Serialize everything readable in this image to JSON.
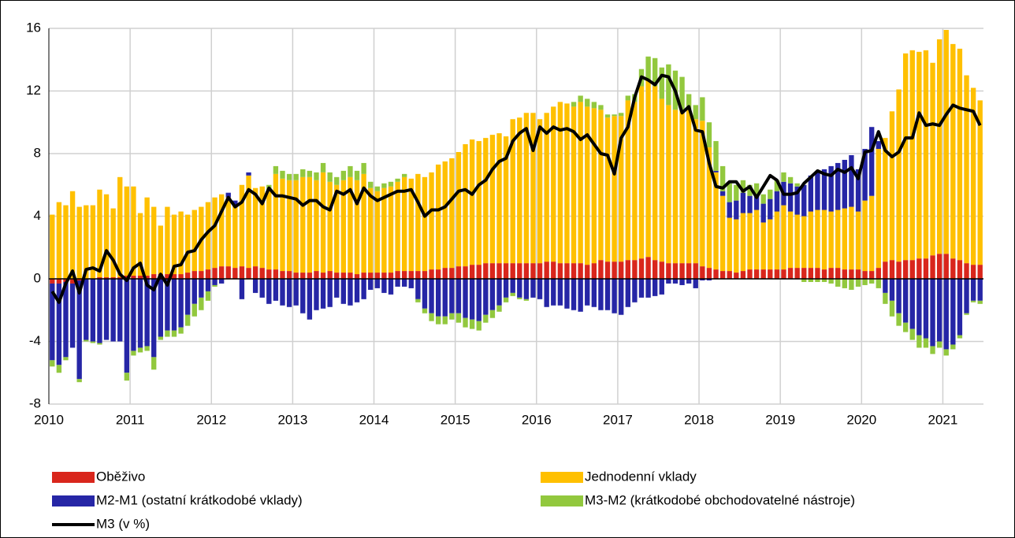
{
  "chart_data": {
    "type": "bar",
    "stacked": true,
    "categories": [
      "2010",
      null,
      null,
      null,
      null,
      null,
      null,
      null,
      null,
      null,
      null,
      null,
      "2011",
      null,
      null,
      null,
      null,
      null,
      null,
      null,
      null,
      null,
      null,
      null,
      "2012",
      null,
      null,
      null,
      null,
      null,
      null,
      null,
      null,
      null,
      null,
      null,
      "2013",
      null,
      null,
      null,
      null,
      null,
      null,
      null,
      null,
      null,
      null,
      null,
      "2014",
      null,
      null,
      null,
      null,
      null,
      null,
      null,
      null,
      null,
      null,
      null,
      "2015",
      null,
      null,
      null,
      null,
      null,
      null,
      null,
      null,
      null,
      null,
      null,
      "2016",
      null,
      null,
      null,
      null,
      null,
      null,
      null,
      null,
      null,
      null,
      null,
      "2017",
      null,
      null,
      null,
      null,
      null,
      null,
      null,
      null,
      null,
      null,
      null,
      "2018",
      null,
      null,
      null,
      null,
      null,
      null,
      null,
      null,
      null,
      null,
      null,
      "2019",
      null,
      null,
      null,
      null,
      null,
      null,
      null,
      null,
      null,
      null,
      null,
      "2020",
      null,
      null,
      null,
      null,
      null,
      null,
      null,
      null,
      null,
      null,
      null,
      "2021",
      null,
      null,
      null,
      null,
      null
    ],
    "series": [
      {
        "name": "Oběživo",
        "type": "bar",
        "color": "#d9261c",
        "values": [
          -0.3,
          -0.3,
          -0.2,
          -0.3,
          -0.1,
          0,
          0,
          0.1,
          0.1,
          0.1,
          0.1,
          0.2,
          0.2,
          0.2,
          0.2,
          0.3,
          0.3,
          0.3,
          0.3,
          0.3,
          0.4,
          0.5,
          0.5,
          0.6,
          0.7,
          0.8,
          0.8,
          0.7,
          0.8,
          0.7,
          0.8,
          0.7,
          0.6,
          0.6,
          0.5,
          0.5,
          0.4,
          0.4,
          0.4,
          0.5,
          0.4,
          0.5,
          0.4,
          0.4,
          0.4,
          0.3,
          0.4,
          0.4,
          0.4,
          0.4,
          0.4,
          0.5,
          0.5,
          0.5,
          0.5,
          0.5,
          0.6,
          0.6,
          0.7,
          0.7,
          0.8,
          0.8,
          0.9,
          0.9,
          1.0,
          1.0,
          1.0,
          1.0,
          1.0,
          1.0,
          1.0,
          1.0,
          1.0,
          1.1,
          1.1,
          1.0,
          1.0,
          1.0,
          1.0,
          0.9,
          1.0,
          1.2,
          1.1,
          1.1,
          1.1,
          1.2,
          1.2,
          1.3,
          1.4,
          1.2,
          1.1,
          1.0,
          1.0,
          1.0,
          1.0,
          1.0,
          0.8,
          0.7,
          0.6,
          0.5,
          0.5,
          0.4,
          0.5,
          0.6,
          0.6,
          0.6,
          0.6,
          0.6,
          0.6,
          0.7,
          0.7,
          0.7,
          0.7,
          0.7,
          0.6,
          0.7,
          0.7,
          0.6,
          0.6,
          0.6,
          0.5,
          0.5,
          0.7,
          1.1,
          1.2,
          1.1,
          1.2,
          1.2,
          1.3,
          1.3,
          1.5,
          1.6,
          1.6,
          1.3,
          1.2,
          1.0,
          0.9,
          0.9
        ]
      },
      {
        "name": "Jednodenní vklady",
        "type": "bar",
        "color": "#ffc000",
        "values": [
          4.1,
          4.9,
          4.7,
          5.6,
          4.6,
          4.7,
          4.7,
          5.6,
          5.3,
          4.4,
          6.4,
          5.7,
          5.7,
          4.0,
          5.0,
          4.3,
          3.1,
          4.3,
          3.8,
          4.0,
          3.7,
          3.9,
          4.1,
          4.3,
          4.5,
          4.6,
          4.4,
          4.0,
          5.2,
          5.9,
          5.0,
          5.2,
          5.1,
          6.1,
          5.9,
          5.8,
          5.9,
          6.1,
          6.1,
          5.8,
          6.4,
          5.7,
          5.6,
          5.9,
          6.1,
          6.0,
          6.3,
          5.4,
          5.2,
          5.4,
          5.5,
          5.7,
          6.0,
          5.9,
          6.2,
          6.0,
          6.2,
          6.7,
          6.8,
          7.0,
          7.3,
          7.8,
          8.0,
          7.9,
          8.0,
          8.2,
          8.3,
          8.1,
          9.2,
          9.3,
          9.6,
          9.6,
          9.2,
          9.5,
          9.9,
          10.3,
          10.2,
          10.0,
          10.3,
          10.1,
          9.9,
          9.6,
          9.2,
          9.3,
          9.3,
          10.2,
          10.1,
          11.0,
          11.3,
          11.1,
          10.4,
          10.1,
          9.8,
          9.7,
          9.8,
          9.2,
          9.3,
          7.7,
          6.2,
          4.8,
          3.4,
          3.4,
          3.7,
          3.6,
          3.8,
          3.0,
          3.2,
          3.7,
          4.1,
          3.6,
          3.4,
          3.3,
          3.6,
          3.7,
          3.8,
          3.6,
          3.7,
          3.9,
          4.0,
          3.7,
          4.5,
          4.8,
          7.6,
          7.9,
          9.5,
          11.0,
          13.2,
          13.4,
          13.2,
          13.3,
          12.3,
          13.7,
          14.3,
          13.7,
          13.5,
          12.0,
          11.3,
          10.5
        ]
      },
      {
        "name": "M2-M1 (ostatní krátkodobé vklady)",
        "type": "bar",
        "color": "#2626a6",
        "values": [
          -4.9,
          -5.2,
          -4.8,
          -4.1,
          -6.3,
          -3.9,
          -4.0,
          -4.1,
          -3.9,
          -4.0,
          -4.0,
          -6.0,
          -4.6,
          -4.4,
          -4.3,
          -5.0,
          -3.7,
          -3.3,
          -3.3,
          -3.1,
          -2.3,
          -1.6,
          -1.2,
          -0.8,
          -0.4,
          -0.3,
          0.3,
          0.3,
          -1.3,
          0.2,
          -0.9,
          -1.2,
          -1.6,
          -1.4,
          -1.7,
          -1.8,
          -1.7,
          -2.2,
          -2.6,
          -2.0,
          -1.9,
          -1.8,
          -1.2,
          -1.6,
          -1.7,
          -1.5,
          -1.3,
          -0.7,
          -0.6,
          -0.9,
          -1.0,
          -0.5,
          -0.5,
          -0.6,
          -1.3,
          -1.9,
          -2.2,
          -2.4,
          -2.4,
          -2.2,
          -2.2,
          -2.5,
          -2.6,
          -2.7,
          -2.3,
          -2.0,
          -1.7,
          -1.2,
          -0.9,
          -1.2,
          -1.3,
          -1.2,
          -1.3,
          -1.8,
          -1.7,
          -1.7,
          -1.9,
          -2.0,
          -2.1,
          -1.7,
          -1.8,
          -2.0,
          -2.0,
          -2.2,
          -2.3,
          -1.8,
          -1.5,
          -1.2,
          -1.2,
          -1.1,
          -1.0,
          -0.3,
          -0.3,
          -0.4,
          -0.3,
          -0.6,
          -0.1,
          -0.1,
          0.1,
          0.3,
          1.0,
          1.2,
          1.3,
          1.1,
          1.0,
          1.2,
          1.3,
          1.3,
          1.5,
          1.8,
          1.8,
          2.0,
          2.3,
          2.5,
          2.6,
          2.9,
          3.0,
          3.1,
          3.3,
          2.7,
          3.3,
          4.4,
          0.5,
          -0.9,
          -1.4,
          -2.2,
          -2.8,
          -3.2,
          -3.6,
          -3.8,
          -4.3,
          -4.0,
          -4.5,
          -4.2,
          -3.6,
          -2.2,
          -1.4,
          -1.4
        ]
      },
      {
        "name": "M3-M2 (krátkodobé obchodovatelné nástroje)",
        "type": "bar",
        "color": "#92c83e",
        "values": [
          -0.4,
          -0.5,
          -0.2,
          0,
          -0.2,
          -0.1,
          -0.1,
          -0.1,
          0,
          0,
          0,
          -0.5,
          -0.3,
          -0.3,
          -0.3,
          -0.8,
          -0.2,
          -0.4,
          -0.4,
          -0.4,
          -0.7,
          -0.8,
          -0.8,
          -0.6,
          -0.1,
          0,
          0,
          0,
          0,
          0,
          0,
          0,
          0.3,
          0.5,
          0.5,
          0.4,
          0.4,
          0.5,
          0.4,
          0.5,
          0.6,
          0.6,
          0.5,
          0.6,
          0.7,
          0.6,
          0.7,
          0.4,
          0.3,
          0.3,
          0.3,
          0.2,
          0.2,
          0,
          -0.2,
          -0.3,
          -0.5,
          -0.5,
          -0.5,
          -0.4,
          -0.6,
          -0.6,
          -0.6,
          -0.6,
          -0.5,
          -0.5,
          -0.4,
          -0.3,
          -0.2,
          -0.1,
          -0.1,
          0,
          0,
          0,
          0,
          0,
          0,
          0.3,
          0.4,
          0.5,
          0.4,
          0.3,
          0.2,
          0.1,
          0.2,
          0.3,
          0.5,
          1.1,
          1.5,
          1.8,
          2.0,
          2.6,
          2.5,
          2.2,
          1.0,
          0.9,
          1.5,
          1.6,
          1.9,
          1.6,
          1.2,
          1.0,
          0.8,
          0.7,
          0.7,
          0.6,
          0.6,
          0.7,
          0.6,
          0.4,
          0.2,
          -0.2,
          -0.2,
          -0.2,
          -0.2,
          -0.3,
          -0.5,
          -0.6,
          -0.7,
          -0.5,
          -0.4,
          -0.3,
          -0.6,
          -0.7,
          -1.0,
          -0.8,
          -0.6,
          -0.7,
          -0.8,
          -0.6,
          -0.5,
          -0.4,
          -0.4,
          -0.3,
          -0.2,
          -0.1,
          -0.1,
          -0.2
        ]
      },
      {
        "name": "M3 (v %)",
        "type": "line",
        "color": "#000000",
        "values": [
          -0.8,
          -1.5,
          -0.3,
          0.5,
          -0.9,
          0.6,
          0.7,
          0.5,
          1.8,
          1.2,
          0.3,
          -0.1,
          0.7,
          1.0,
          -0.4,
          -0.7,
          0.3,
          -0.4,
          0.8,
          0.9,
          1.7,
          1.8,
          2.5,
          3.0,
          3.4,
          4.3,
          5.2,
          4.6,
          4.9,
          5.7,
          5.4,
          4.8,
          5.8,
          5.3,
          5.3,
          5.2,
          5.1,
          4.7,
          5.0,
          5.0,
          4.6,
          4.4,
          5.6,
          5.4,
          5.7,
          4.8,
          5.8,
          5.3,
          5.0,
          5.2,
          5.4,
          5.6,
          5.6,
          5.7,
          4.9,
          4.0,
          4.4,
          4.4,
          4.6,
          5.1,
          5.6,
          5.7,
          5.4,
          6.0,
          6.3,
          7.0,
          7.5,
          7.7,
          8.8,
          9.3,
          9.6,
          8.2,
          9.7,
          9.3,
          9.7,
          9.5,
          9.6,
          9.4,
          8.9,
          9.2,
          8.6,
          8.0,
          7.9,
          6.7,
          9.0,
          9.7,
          11.6,
          12.9,
          12.7,
          12.4,
          13.0,
          12.9,
          12.0,
          10.6,
          11.0,
          9.5,
          9.4,
          7.4,
          5.9,
          5.8,
          6.2,
          6.2,
          5.6,
          5.9,
          5.2,
          5.9,
          6.6,
          6.3,
          5.4,
          5.4,
          5.5,
          6.1,
          6.5,
          6.9,
          6.7,
          6.6,
          7.0,
          6.8,
          7.1,
          6.4,
          8.1,
          8.2,
          9.4,
          8.2,
          7.8,
          8.1,
          9.0,
          9.0,
          10.6,
          9.8,
          9.9,
          9.8,
          10.5,
          11.1,
          10.9,
          10.8,
          10.7,
          9.8
        ]
      }
    ],
    "ylim": [
      -8,
      16
    ],
    "yticks": [
      -8,
      -4,
      0,
      4,
      8,
      12,
      16
    ],
    "grid": true
  }
}
